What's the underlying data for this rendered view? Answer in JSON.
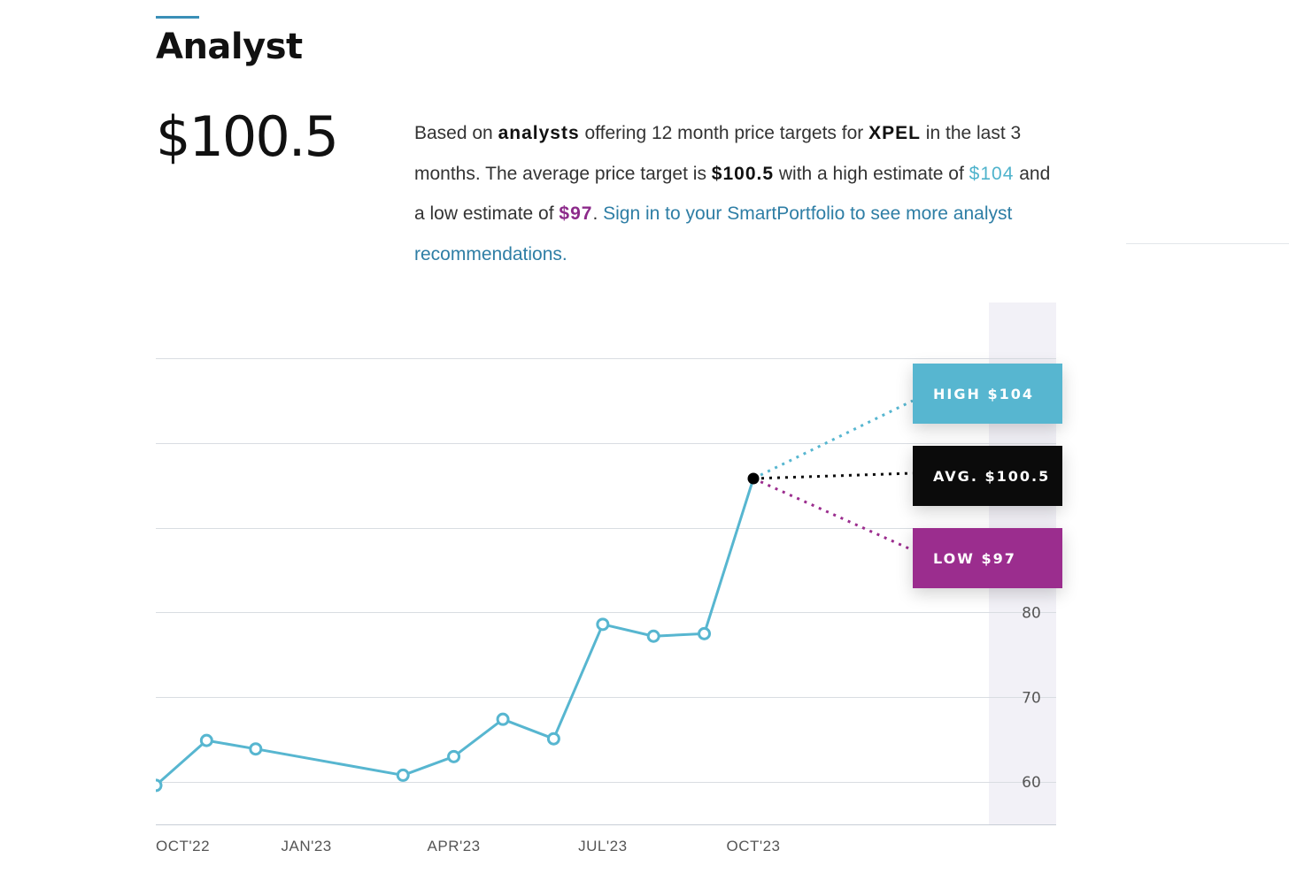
{
  "header": {
    "title": "Analyst",
    "price": "$100.5"
  },
  "description": {
    "p1": "Based on ",
    "analysts": "analysts",
    "p2": " offering 12 month price targets for ",
    "ticker": "XPEL",
    "p3": " in the last 3 months. The average price target is ",
    "avg": "$100.5",
    "p4": " with a high estimate of ",
    "high": "$104",
    "p5": " and a low estimate of ",
    "low": "$97",
    "p6": ". ",
    "link": "Sign in to your SmartPortfolio to see more analyst recommendations."
  },
  "badges": {
    "high": "HIGH $104",
    "avg": "AVG. $100.5",
    "low": "LOW $97"
  },
  "colors": {
    "line": "#57b6d0",
    "high": "#57b6d0",
    "avg": "#0b0b0b",
    "low": "#9b2d8e",
    "grid": "#d9dde2",
    "axis_band": "#f2f1f7"
  },
  "chart_data": {
    "type": "line",
    "x_ticks": [
      "OCT'22",
      "JAN'23",
      "APR'23",
      "JUL'23",
      "OCT'23"
    ],
    "y_ticks": [
      60,
      70,
      80
    ],
    "ylim": [
      55,
      115
    ],
    "x": [
      "2022-09-30",
      "2022-10-31",
      "2022-11-30",
      "2023-02-28",
      "2023-03-31",
      "2023-04-30",
      "2023-05-31",
      "2023-06-30",
      "2023-07-31",
      "2023-08-31",
      "2023-09-30"
    ],
    "series": [
      {
        "values": [
          59.6,
          64.9,
          63.9,
          60.8,
          63.0,
          67.4,
          65.1,
          78.6,
          77.2,
          77.5,
          95.8
        ]
      }
    ],
    "forecast": {
      "high": 104,
      "avg": 100.5,
      "low": 97
    },
    "grid": true
  }
}
